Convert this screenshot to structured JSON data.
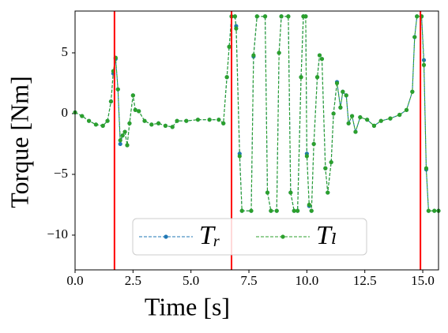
{
  "chart_data": {
    "type": "line",
    "x_label": "Time [s]",
    "y_label": "Torque [Nm]",
    "x": [
      0.0,
      0.3,
      0.6,
      0.9,
      1.2,
      1.4,
      1.55,
      1.65,
      1.75,
      1.85,
      1.95,
      2.05,
      2.15,
      2.25,
      2.35,
      2.5,
      2.6,
      2.75,
      3.0,
      3.3,
      3.6,
      3.9,
      4.2,
      4.4,
      4.8,
      5.3,
      5.8,
      6.2,
      6.4,
      6.55,
      6.65,
      6.75,
      6.9,
      6.95,
      7.1,
      7.2,
      7.6,
      7.7,
      7.85,
      8.2,
      8.3,
      8.45,
      8.7,
      8.8,
      8.9,
      9.2,
      9.3,
      9.45,
      9.6,
      9.75,
      9.85,
      9.95,
      10.0,
      10.1,
      10.2,
      10.3,
      10.45,
      10.55,
      10.65,
      10.8,
      10.9,
      11.05,
      11.15,
      11.3,
      11.45,
      11.55,
      11.7,
      11.8,
      11.95,
      12.1,
      12.3,
      12.6,
      12.9,
      13.2,
      13.6,
      14.0,
      14.3,
      14.55,
      14.65,
      14.75,
      14.95,
      15.05,
      15.15,
      15.25,
      15.5,
      15.68
    ],
    "series": [
      {
        "name": "Tᵣ",
        "color": "#1f77b4",
        "values": [
          0.1,
          -0.2,
          -0.6,
          -0.9,
          -1.0,
          -0.6,
          1.0,
          3.3,
          4.5,
          2.0,
          -2.5,
          -1.8,
          -1.5,
          -2.6,
          -0.8,
          1.5,
          0.3,
          0.2,
          -0.6,
          -0.9,
          -0.8,
          -1.0,
          -1.1,
          -0.6,
          -0.6,
          -0.5,
          -0.5,
          -0.5,
          -0.8,
          3.0,
          5.5,
          8.0,
          8.0,
          7.2,
          -3.3,
          -8.0,
          -8.0,
          4.7,
          8.0,
          8.0,
          -6.5,
          -8.0,
          -8.0,
          5.0,
          8.0,
          8.0,
          -6.5,
          -8.0,
          -8.0,
          3.0,
          8.0,
          8.0,
          -3.3,
          -7.6,
          -8.0,
          -2.5,
          3.0,
          4.8,
          4.5,
          -4.5,
          -6.5,
          -4.0,
          0.0,
          2.6,
          0.5,
          1.8,
          1.5,
          -0.8,
          -0.2,
          -1.5,
          -0.3,
          -0.5,
          -1.0,
          -0.6,
          -0.4,
          -0.1,
          0.3,
          1.8,
          6.3,
          8.0,
          8.0,
          4.4,
          -4.6,
          -8.0,
          -8.0,
          -8.0
        ]
      },
      {
        "name": "Tₗ",
        "color": "#2ca02c",
        "values": [
          0.1,
          -0.2,
          -0.6,
          -0.9,
          -1.0,
          -0.6,
          1.0,
          3.5,
          4.6,
          2.0,
          -2.2,
          -1.8,
          -1.5,
          -2.6,
          -0.8,
          1.5,
          0.3,
          0.2,
          -0.6,
          -0.9,
          -0.8,
          -1.0,
          -1.1,
          -0.6,
          -0.6,
          -0.5,
          -0.5,
          -0.5,
          -0.8,
          3.0,
          5.5,
          8.0,
          8.0,
          7.0,
          -3.5,
          -8.0,
          -8.0,
          4.8,
          8.0,
          8.0,
          -6.5,
          -8.0,
          -8.0,
          5.0,
          8.0,
          8.0,
          -6.5,
          -8.0,
          -8.0,
          3.0,
          8.0,
          8.0,
          -3.5,
          -7.5,
          -8.0,
          -2.5,
          3.0,
          4.8,
          4.5,
          -4.5,
          -6.5,
          -4.0,
          0.0,
          2.5,
          0.5,
          1.8,
          1.5,
          -0.8,
          -0.2,
          -1.5,
          -0.3,
          -0.5,
          -1.0,
          -0.6,
          -0.4,
          -0.1,
          0.3,
          1.8,
          6.3,
          8.0,
          8.0,
          4.0,
          -4.5,
          -8.0,
          -8.0,
          -8.0
        ]
      }
    ],
    "vlines": [
      1.7,
      6.75,
      14.9
    ],
    "vline_color": "#ff0000",
    "xlim": [
      0,
      15.68
    ],
    "ylim": [
      -12.86,
      8.44
    ],
    "xticks": [
      {
        "value": 0,
        "label": "0.0"
      },
      {
        "value": 2.5,
        "label": "2.5"
      },
      {
        "value": 5,
        "label": "5.0"
      },
      {
        "value": 7.5,
        "label": "7.5"
      },
      {
        "value": 10,
        "label": "10.0"
      },
      {
        "value": 12.5,
        "label": "12.5"
      },
      {
        "value": 15,
        "label": "15.0"
      }
    ],
    "yticks": [
      {
        "value": -10,
        "label": "−10"
      },
      {
        "value": -5,
        "label": "−5"
      },
      0,
      5
    ],
    "legend": "lower center",
    "grid": false
  }
}
